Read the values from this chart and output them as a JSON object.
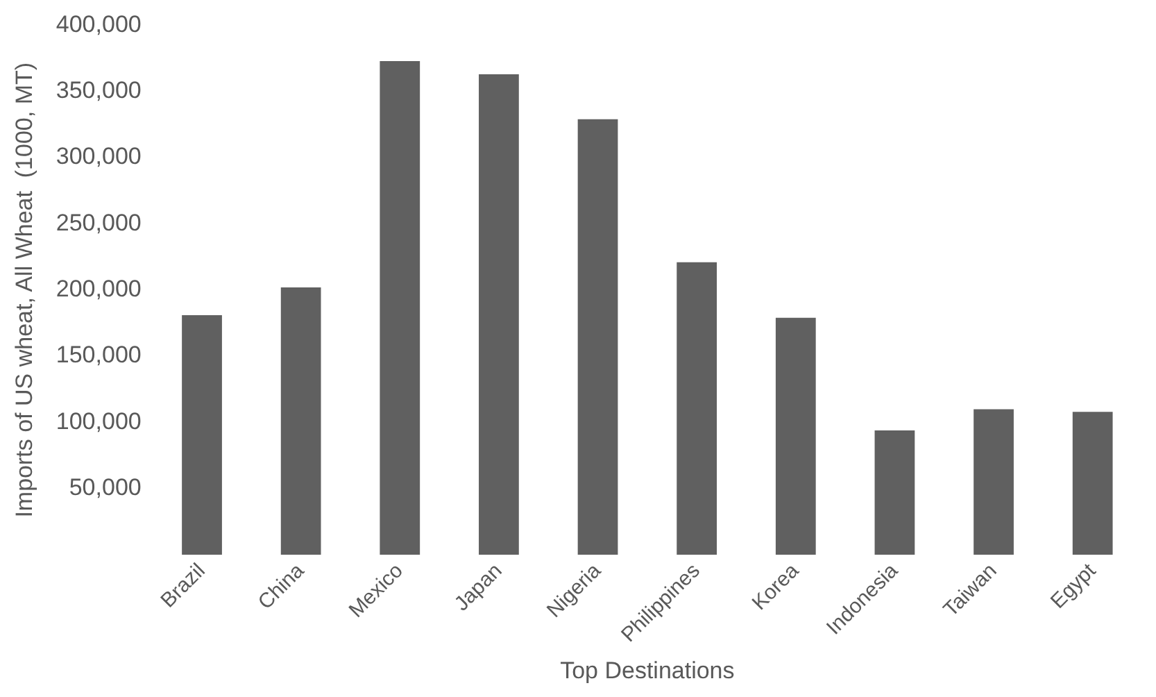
{
  "chart_data": {
    "type": "bar",
    "xlabel": "Top Destinations",
    "ylabel": "Imports of US wheat, All Wheat  (1000, MT)",
    "categories": [
      "Brazil",
      "China",
      "Mexico",
      "Japan",
      "Nigeria",
      "Philippines",
      "Korea",
      "Indonesia",
      "Taiwan",
      "Egypt"
    ],
    "values": [
      181000,
      202000,
      373000,
      363000,
      329000,
      221000,
      179000,
      94000,
      110000,
      108000
    ],
    "color": "#606060",
    "ylim": [
      0,
      400000
    ],
    "yticks": [
      {
        "value": 50000,
        "label": "50,000"
      },
      {
        "value": 100000,
        "label": "100,000"
      },
      {
        "value": 150000,
        "label": "150,000"
      },
      {
        "value": 200000,
        "label": "200,000"
      },
      {
        "value": 250000,
        "label": "250,000"
      },
      {
        "value": 300000,
        "label": "300,000"
      },
      {
        "value": 350000,
        "label": "350,000"
      },
      {
        "value": 400000,
        "label": "400,000"
      }
    ],
    "grid": false
  }
}
